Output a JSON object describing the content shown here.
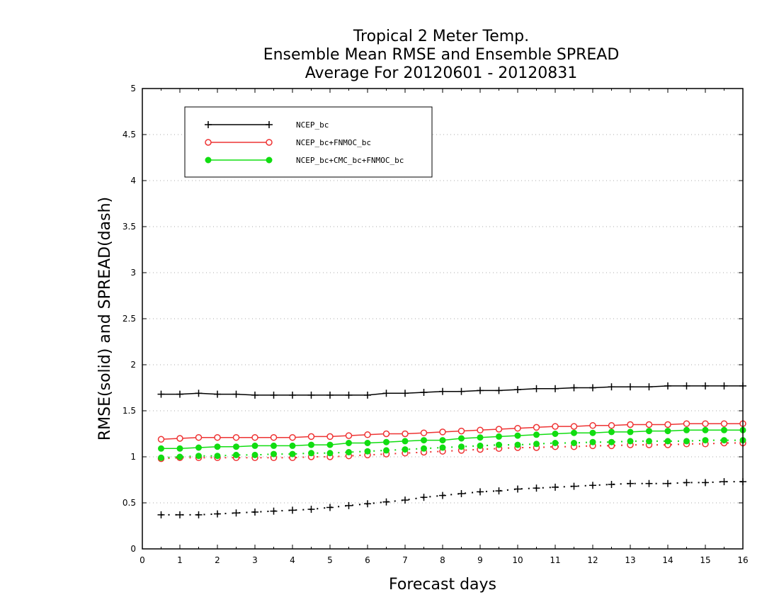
{
  "chart_data": {
    "type": "line",
    "title": [
      "Tropical 2 Meter Temp.",
      "Ensemble Mean RMSE and Ensemble SPREAD",
      "Average For 20120601 - 20120831"
    ],
    "xlabel": "Forecast days",
    "ylabel": "RMSE(solid) and SPREAD(dash)",
    "xlim": [
      0,
      16
    ],
    "ylim": [
      0,
      5
    ],
    "xticks": [
      "0",
      "1",
      "2",
      "3",
      "4",
      "5",
      "6",
      "7",
      "8",
      "9",
      "10",
      "11",
      "12",
      "13",
      "14",
      "15",
      "16"
    ],
    "yticks": [
      "0",
      "0.5",
      "1",
      "1.5",
      "2",
      "2.5",
      "3",
      "3.5",
      "4",
      "4.5",
      "5"
    ],
    "grid": "horizontal dotted",
    "legend_placement": "top-left",
    "x": [
      0.5,
      1,
      1.5,
      2,
      2.5,
      3,
      3.5,
      4,
      4.5,
      5,
      5.5,
      6,
      6.5,
      7,
      7.5,
      8,
      8.5,
      9,
      9.5,
      10,
      10.5,
      11,
      11.5,
      12,
      12.5,
      13,
      13.5,
      14,
      14.5,
      15,
      15.5,
      16
    ],
    "series": [
      {
        "name": "NCEP_bc",
        "color": "#000000",
        "marker": "plus",
        "rmse": [
          1.68,
          1.68,
          1.69,
          1.68,
          1.68,
          1.67,
          1.67,
          1.67,
          1.67,
          1.67,
          1.67,
          1.67,
          1.69,
          1.69,
          1.7,
          1.71,
          1.71,
          1.72,
          1.72,
          1.73,
          1.74,
          1.74,
          1.75,
          1.75,
          1.76,
          1.76,
          1.76,
          1.77,
          1.77,
          1.77,
          1.77,
          1.77
        ],
        "spread": [
          0.37,
          0.37,
          0.37,
          0.38,
          0.39,
          0.4,
          0.41,
          0.42,
          0.43,
          0.45,
          0.47,
          0.49,
          0.51,
          0.53,
          0.56,
          0.58,
          0.6,
          0.62,
          0.63,
          0.65,
          0.66,
          0.67,
          0.68,
          0.69,
          0.7,
          0.71,
          0.71,
          0.71,
          0.72,
          0.72,
          0.73,
          0.73
        ]
      },
      {
        "name": "NCEP_bc+FNMOC_bc",
        "color": "#ee3333",
        "marker": "open-circle",
        "rmse": [
          1.19,
          1.2,
          1.21,
          1.21,
          1.21,
          1.21,
          1.21,
          1.21,
          1.22,
          1.22,
          1.23,
          1.24,
          1.25,
          1.25,
          1.26,
          1.27,
          1.28,
          1.29,
          1.3,
          1.31,
          1.32,
          1.33,
          1.33,
          1.34,
          1.34,
          1.35,
          1.35,
          1.35,
          1.36,
          1.36,
          1.36,
          1.36
        ],
        "spread": [
          0.98,
          0.99,
          0.99,
          0.99,
          0.99,
          0.99,
          0.99,
          0.99,
          1.0,
          1.0,
          1.01,
          1.02,
          1.03,
          1.04,
          1.05,
          1.06,
          1.07,
          1.08,
          1.09,
          1.1,
          1.1,
          1.11,
          1.11,
          1.12,
          1.12,
          1.13,
          1.13,
          1.13,
          1.14,
          1.14,
          1.15,
          1.15
        ]
      },
      {
        "name": "NCEP_bc+CMC_bc+FNMOC_bc",
        "color": "#11dd11",
        "marker": "filled-circle",
        "rmse": [
          1.09,
          1.09,
          1.1,
          1.11,
          1.11,
          1.12,
          1.12,
          1.12,
          1.13,
          1.13,
          1.15,
          1.15,
          1.16,
          1.17,
          1.18,
          1.18,
          1.2,
          1.21,
          1.22,
          1.23,
          1.24,
          1.25,
          1.26,
          1.26,
          1.27,
          1.27,
          1.28,
          1.28,
          1.29,
          1.29,
          1.29,
          1.29
        ],
        "spread": [
          0.99,
          1.0,
          1.01,
          1.01,
          1.02,
          1.02,
          1.03,
          1.03,
          1.04,
          1.04,
          1.05,
          1.06,
          1.07,
          1.08,
          1.09,
          1.1,
          1.11,
          1.12,
          1.13,
          1.13,
          1.14,
          1.15,
          1.15,
          1.16,
          1.16,
          1.17,
          1.17,
          1.17,
          1.17,
          1.18,
          1.18,
          1.18
        ]
      }
    ]
  }
}
